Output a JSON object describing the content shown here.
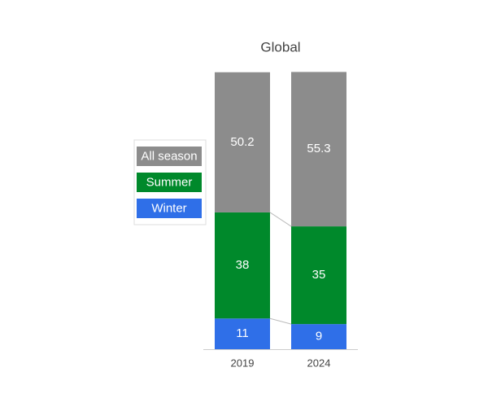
{
  "chart_data": {
    "type": "stacked_bar",
    "title": "Global",
    "categories": [
      "2019",
      "2024"
    ],
    "series": [
      {
        "name": "Winter",
        "color": "#2f6fe8",
        "values": [
          11,
          9
        ]
      },
      {
        "name": "Summer",
        "color": "#00892b",
        "values": [
          38,
          35
        ]
      },
      {
        "name": "All season",
        "color": "#8c8c8c",
        "values": [
          50.2,
          55.3
        ]
      }
    ],
    "ylim": [
      0,
      100
    ],
    "legend": "left"
  }
}
